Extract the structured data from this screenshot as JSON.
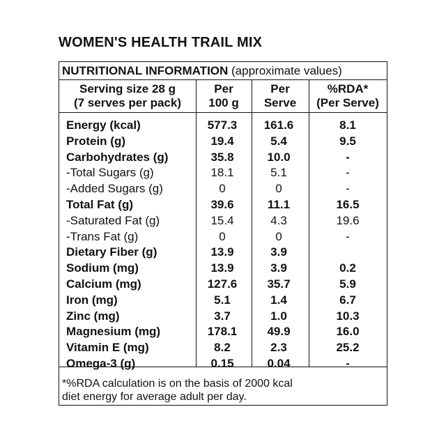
{
  "title": "WOMEN'S HEALTH TRAIL MIX",
  "panel": {
    "heading_bold": "NUTRITIONAL INFORMATION",
    "heading_note": " (approximate values)",
    "headers": {
      "serving_line1": "Serving size 28 g",
      "serving_line2": "(7 serves per pack)",
      "per100_line1": "Per",
      "per100_line2": "100 g",
      "perserve_line1": "Per",
      "perserve_line2": "Serve",
      "rda_line1": "%RDA*",
      "rda_line2": "(Per Serve)"
    },
    "rows": [
      {
        "label": "Energy (kcal)",
        "per100": "577.3",
        "per_serve": "161.6",
        "rda": "8.1",
        "bold": true
      },
      {
        "label": "Protein (g)",
        "per100": "19.4",
        "per_serve": "5.4",
        "rda": "9.5",
        "bold": true
      },
      {
        "label": "Carbohydrates (g)",
        "per100": "35.8",
        "per_serve": "10.0",
        "rda": "-",
        "bold": true
      },
      {
        "label": "-Total Sugars (g)",
        "per100": "18.1",
        "per_serve": "5.1",
        "rda": "-",
        "bold": false
      },
      {
        "label": "-Added Sugars (g)",
        "per100": "0",
        "per_serve": "0",
        "rda": "-",
        "bold": false
      },
      {
        "label": "Total Fat (g)",
        "per100": "39.6",
        "per_serve": "11.1",
        "rda": "16.5",
        "bold": true
      },
      {
        "label": "-Saturated Fat (g)",
        "per100": "15.4",
        "per_serve": "4.3",
        "rda": "19.6",
        "bold": false
      },
      {
        "label": "-Trans Fat (g)",
        "per100": "0",
        "per_serve": "0",
        "rda": "-",
        "bold": false
      },
      {
        "label": "Dietary Fiber (g)",
        "per100": "13.9",
        "per_serve": "3.9",
        "rda": "",
        "bold": true
      },
      {
        "label": "Sodium (mg)",
        "per100": "13.9",
        "per_serve": "3.9",
        "rda": "0.2",
        "bold": true
      },
      {
        "label": "Calcium (mg)",
        "per100": "127.6",
        "per_serve": "35.7",
        "rda": "5.9",
        "bold": true
      },
      {
        "label": "Iron (mg)",
        "per100": "5.1",
        "per_serve": "1.4",
        "rda": "6.7",
        "bold": true
      },
      {
        "label": "Zinc (mg)",
        "per100": "3.7",
        "per_serve": "1.0",
        "rda": "10.3",
        "bold": true
      },
      {
        "label": "Magnesium (mg)",
        "per100": "178.1",
        "per_serve": "49.9",
        "rda": "16.0",
        "bold": true
      },
      {
        "label": "Vitamin E (mg)",
        "per100": "8.2",
        "per_serve": "2.3",
        "rda": "25.2",
        "bold": true
      },
      {
        "label": "Omega-3 (g)",
        "per100": "0.15",
        "per_serve": "0.04",
        "rda": "-",
        "bold": true
      }
    ],
    "footnote_line1": "*%RDA calculation is on the basis of 2000 kcal",
    "footnote_line2": "diet energy for average adult per day."
  }
}
